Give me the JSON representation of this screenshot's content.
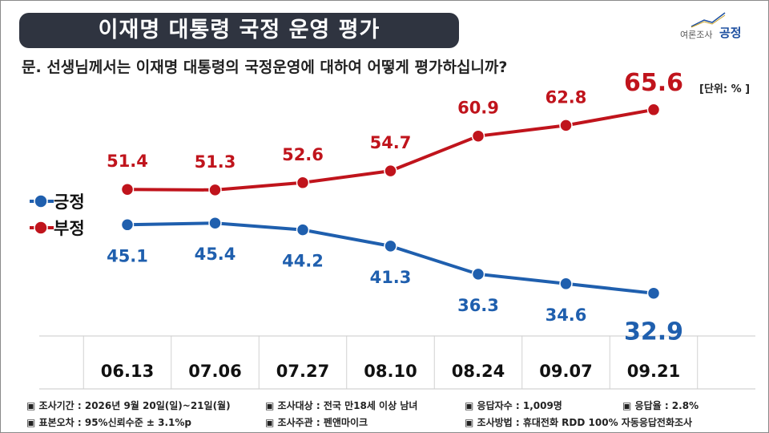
{
  "title": "이재명 대통령 국정 운영 평가",
  "logo": {
    "text_small": "여론조사",
    "text_brand": "공정"
  },
  "question": "문. 선생님께서는 이재명 대통령의 국정운영에 대하여 어떻게 평가하십니까?",
  "unit": "[단위: % ]",
  "chart_data": {
    "type": "line",
    "x": [
      "06.13",
      "07.06",
      "07.27",
      "08.10",
      "08.24",
      "09.07",
      "09.21"
    ],
    "series": [
      {
        "name": "긍정",
        "color": "#1f5fae",
        "values": [
          45.1,
          45.4,
          44.2,
          41.3,
          36.3,
          34.6,
          32.9
        ]
      },
      {
        "name": "부정",
        "color": "#c0141c",
        "values": [
          51.4,
          51.3,
          52.6,
          54.7,
          60.9,
          62.8,
          65.6
        ]
      }
    ],
    "title": "",
    "xlabel": "",
    "ylabel": "",
    "ylim": [
      25,
      75
    ],
    "grid": false,
    "legend": "left"
  },
  "footer": [
    {
      "icon": "▣",
      "text": "조사기간 : 2026년 9월 20일(일)~21일(월)"
    },
    {
      "icon": "▣",
      "text": "조사대상 : 전국 만18세 이상 남녀"
    },
    {
      "icon": "▣",
      "text": "응답자수 : 1,009명"
    },
    {
      "icon": "▣",
      "text": "응답율 : 2.8%"
    },
    {
      "icon": "▣",
      "text": "표본오차 : 95%신뢰수준 ± 3.1%p"
    },
    {
      "icon": "▣",
      "text": "조사주관 : 펜앤마이크"
    },
    {
      "icon": "▣",
      "text": "조사방법 : 휴대전화 RDD 100% 자동응답전화조사"
    }
  ]
}
